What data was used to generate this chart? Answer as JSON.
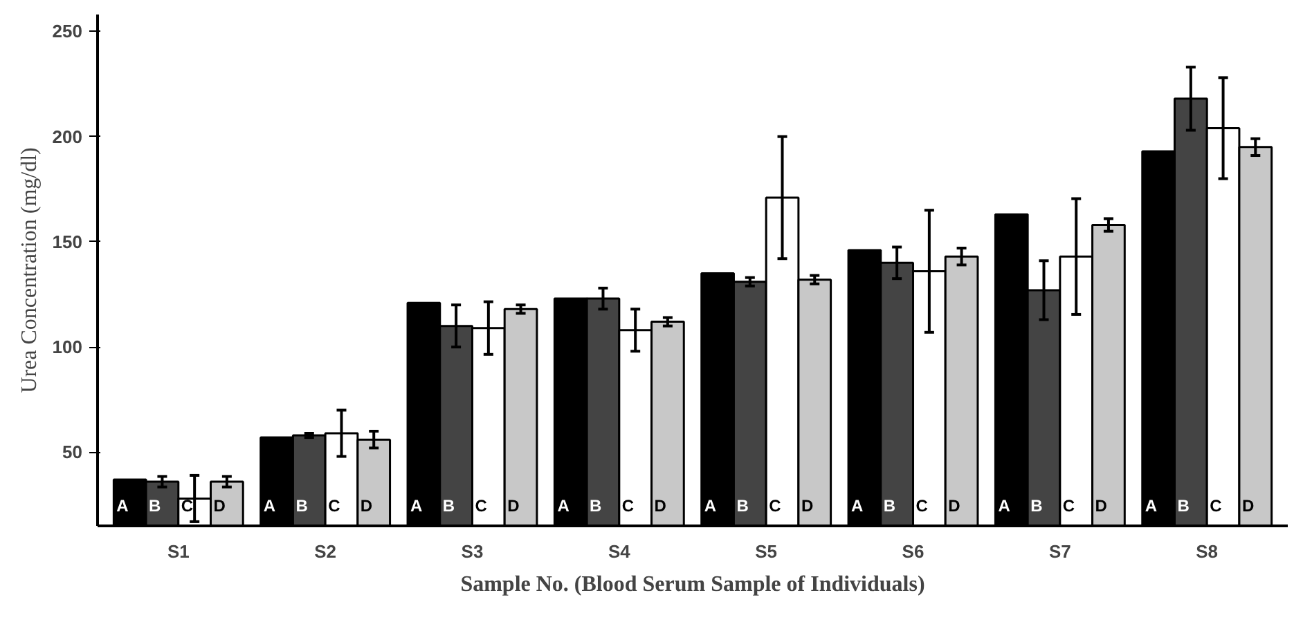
{
  "chart_data": {
    "type": "bar",
    "xlabel": "Sample No. (Blood Serum Sample of Individuals)",
    "ylabel": "Urea Concentration (mg/dl)",
    "categories": [
      "S1",
      "S2",
      "S3",
      "S4",
      "S5",
      "S6",
      "S7",
      "S8"
    ],
    "series": [
      {
        "name": "A",
        "color": "#000000",
        "values": [
          37,
          57,
          121,
          123,
          135,
          146,
          163,
          193
        ],
        "errors": [
          null,
          null,
          null,
          null,
          null,
          null,
          null,
          null
        ]
      },
      {
        "name": "B",
        "color": "#444444",
        "values": [
          36,
          58,
          110,
          123,
          131,
          140,
          127,
          218
        ],
        "errors": [
          2.5,
          1,
          10,
          5,
          2,
          7.5,
          14,
          15
        ]
      },
      {
        "name": "C",
        "color": "#ffffff",
        "values": [
          28,
          59,
          109,
          108,
          171,
          136,
          143,
          204
        ],
        "errors": [
          11,
          11,
          12.5,
          10,
          29,
          29,
          27.5,
          24
        ]
      },
      {
        "name": "D",
        "color": "#c8c8c8",
        "values": [
          36,
          56,
          118,
          112,
          132,
          143,
          158,
          195
        ],
        "errors": [
          2.5,
          4,
          2,
          2,
          2,
          4,
          3,
          4
        ]
      }
    ],
    "ylim": [
      15,
      258
    ],
    "yticks": [
      50,
      100,
      150,
      200,
      250
    ],
    "grid": false,
    "legend": false
  }
}
